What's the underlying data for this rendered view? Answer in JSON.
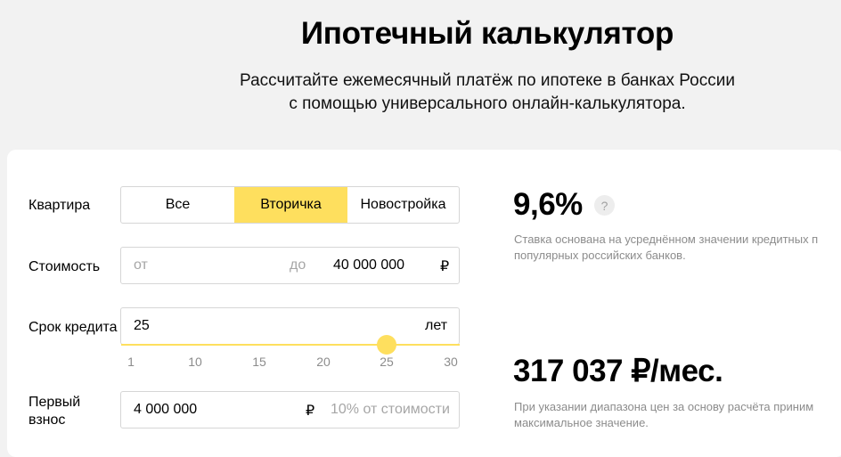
{
  "header": {
    "title": "Ипотечный калькулятор",
    "subtitle_line1": "Рассчитайте ежемесячный платёж по ипотеке в банках России",
    "subtitle_line2": "с помощью универсального онлайн-калькулятора."
  },
  "form": {
    "apartment": {
      "label": "Квартира",
      "options": [
        "Все",
        "Вторичка",
        "Новостройка"
      ],
      "selected": "Вторичка"
    },
    "cost": {
      "label": "Стоимость",
      "from_placeholder": "от",
      "to_label": "до",
      "to_value": "40 000 000",
      "currency": "₽"
    },
    "term": {
      "label": "Срок кредита",
      "value": "25",
      "unit": "лет",
      "ticks": [
        "1",
        "10",
        "15",
        "20",
        "25",
        "30"
      ],
      "slider_value": 25,
      "slider_min": 1,
      "slider_max": 30
    },
    "down_payment": {
      "label_line1": "Первый",
      "label_line2": "взнос",
      "value": "4 000 000",
      "currency": "₽",
      "hint": "10% от стоимости"
    }
  },
  "results": {
    "rate": "9,6%",
    "help_icon": "question-icon",
    "rate_note_line1": "Ставка основана на усреднённом значении кредитных п",
    "rate_note_line2": "популярных российских банков.",
    "payment": "317 037 ₽/мес.",
    "payment_note_line1": "При указании диапазона цен за основу расчёта приним",
    "payment_note_line2": "максимальное значение."
  },
  "colors": {
    "accent": "#fedf5e",
    "background": "#f2f2f2",
    "muted_text": "#8c8c8c"
  }
}
